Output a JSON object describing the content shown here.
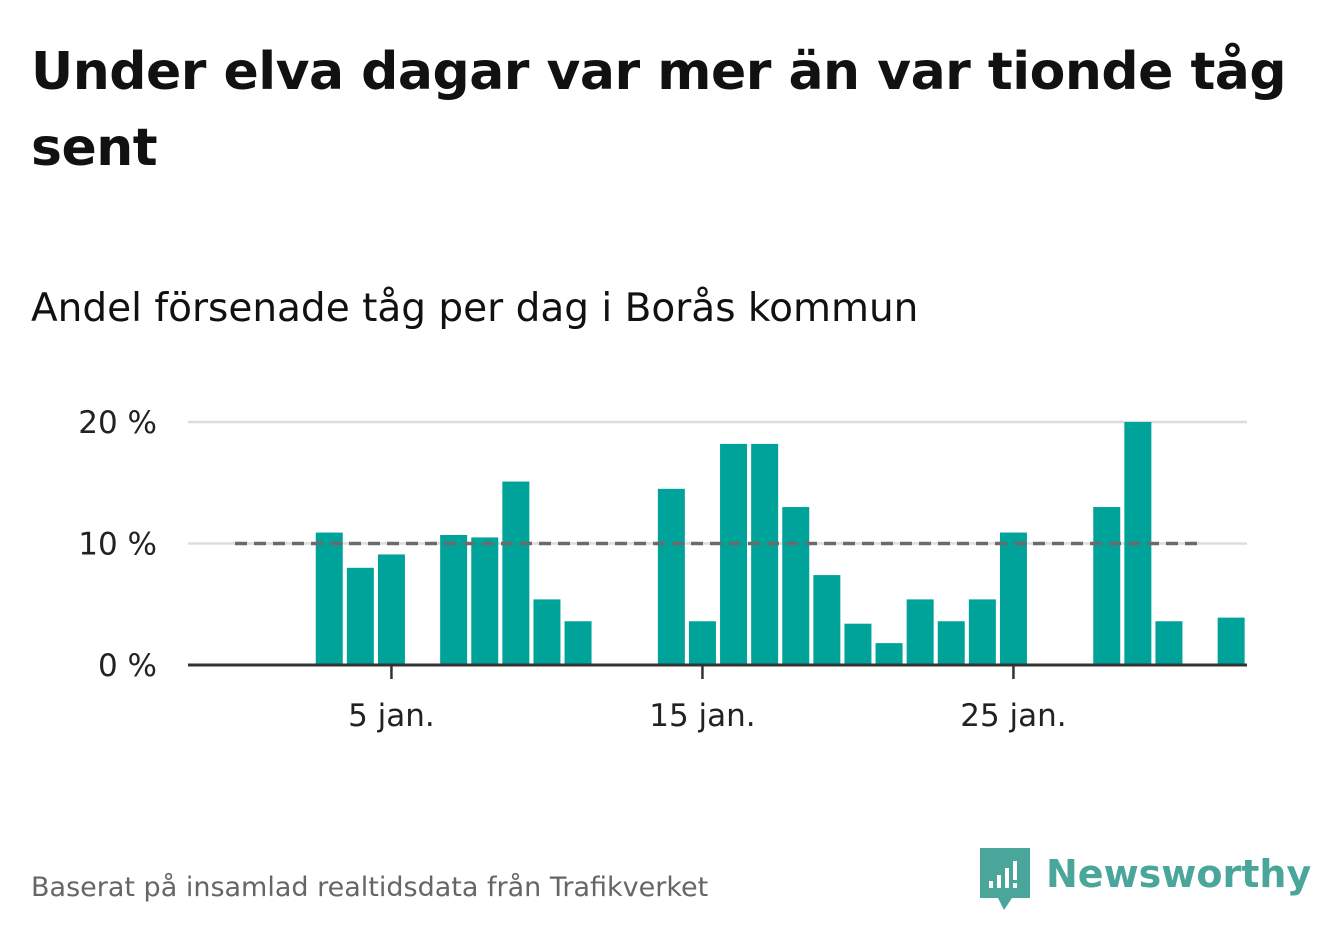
{
  "title": "Under elva dagar var mer än var tionde tåg sent",
  "subtitle": "Andel försenade tåg per dag i Borås kommun",
  "footer": "Baserat på insamlad realtidsdata från Trafikverket",
  "brand": {
    "name": "Newsworthy",
    "icon": "newsworthy-logo-icon",
    "color": "#4aa59b"
  },
  "colors": {
    "bar": "#00a39a",
    "reference_line": "#6b6b6b",
    "grid": "#dddddd",
    "axis": "#333333"
  },
  "chart_data": {
    "type": "bar",
    "x": [
      "1 jan.",
      "2 jan.",
      "3 jan.",
      "4 jan.",
      "5 jan.",
      "6 jan.",
      "7 jan.",
      "8 jan.",
      "9 jan.",
      "10 jan.",
      "11 jan.",
      "12 jan.",
      "13 jan.",
      "14 jan.",
      "15 jan.",
      "16 jan.",
      "17 jan.",
      "18 jan.",
      "19 jan.",
      "20 jan.",
      "21 jan.",
      "22 jan.",
      "23 jan.",
      "24 jan.",
      "25 jan.",
      "26 jan.",
      "27 jan.",
      "28 jan.",
      "29 jan.",
      "30 jan.",
      "31 jan.",
      "1 feb."
    ],
    "values": [
      null,
      null,
      10.9,
      8.0,
      9.1,
      null,
      10.7,
      10.5,
      15.1,
      5.4,
      3.6,
      null,
      null,
      14.5,
      3.6,
      18.2,
      18.2,
      13.0,
      7.4,
      3.4,
      1.8,
      5.4,
      3.6,
      5.4,
      10.9,
      null,
      null,
      13.0,
      20.0,
      3.6,
      null,
      3.9
    ],
    "reference_line": 10,
    "ylim": [
      0,
      20
    ],
    "yticks": [
      0,
      10,
      20
    ],
    "ytick_labels": [
      "0 %",
      "10 %",
      "20 %"
    ],
    "xtick_labels": [
      "5 jan.",
      "15 jan.",
      "25 jan."
    ],
    "xtick_index": [
      4,
      14,
      24
    ],
    "grid": true,
    "xlabel": "",
    "ylabel": ""
  }
}
